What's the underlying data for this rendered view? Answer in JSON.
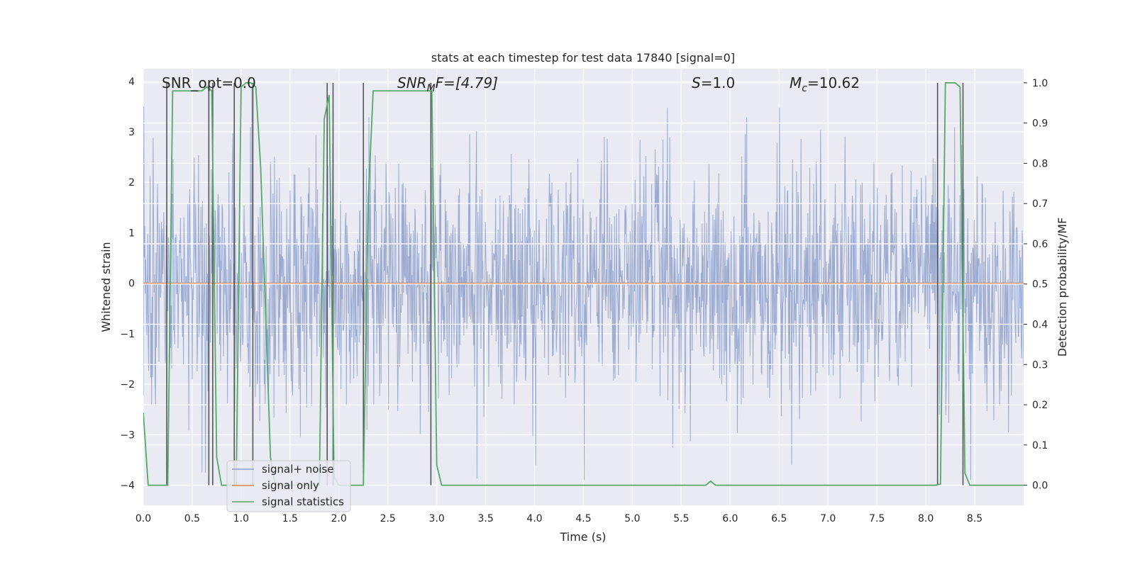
{
  "chart_data": {
    "type": "line",
    "title": "stats at each timestep for test data 17840 [signal=0]",
    "xlabel": "Time (s)",
    "ylabel_left": "Whitened strain",
    "ylabel_right": "Detection probability/MF",
    "xlim": [
      0.0,
      9.0
    ],
    "ylim_left": [
      -4.4,
      4.25
    ],
    "ylim_right": [
      -0.05,
      1.035
    ],
    "x_ticks": [
      0.0,
      0.5,
      1.0,
      1.5,
      2.0,
      2.5,
      3.0,
      3.5,
      4.0,
      4.5,
      5.0,
      5.5,
      6.0,
      6.5,
      7.0,
      7.5,
      8.0,
      8.5
    ],
    "x_tick_labels": [
      "0.0",
      "0.5",
      "1.0",
      "1.5",
      "2.0",
      "2.5",
      "3.0",
      "3.5",
      "4.0",
      "4.5",
      "5.0",
      "5.5",
      "6.0",
      "6.5",
      "7.0",
      "7.5",
      "8.0",
      "8.5"
    ],
    "y_left_ticks": [
      -4,
      -3,
      -2,
      -1,
      0,
      1,
      2,
      3,
      4
    ],
    "y_left_tick_labels": [
      "−4",
      "−3",
      "−2",
      "−1",
      "0",
      "1",
      "2",
      "3",
      "4"
    ],
    "y_right_ticks": [
      0.0,
      0.1,
      0.2,
      0.3,
      0.4,
      0.5,
      0.6,
      0.7,
      0.8,
      0.9,
      1.0
    ],
    "y_right_tick_labels": [
      "0.0",
      "0.1",
      "0.2",
      "0.3",
      "0.4",
      "0.5",
      "0.6",
      "0.7",
      "0.8",
      "0.9",
      "1.0"
    ],
    "annotations": {
      "snr_opt": "SNR_opt=0.0",
      "snr_mf_sym": "SNR",
      "snr_mf_sub": "M",
      "snr_mf_tail": "F=[4.79]",
      "s_sym": "S",
      "s_val": "=1.0",
      "mc_sym": "M",
      "mc_sub": "c",
      "mc_val": "=10.62"
    },
    "legend": {
      "location": "lower left",
      "entries": [
        "signal+ noise",
        "signal only",
        "signal statistics"
      ]
    },
    "noise": {
      "name": "signal+ noise",
      "color": "#8da0cb",
      "samples": 1800,
      "sigma": 1.0,
      "seed": 17840
    },
    "signal_only": {
      "name": "signal only",
      "color": "#dd8452",
      "x": [
        0.0,
        9.0
      ],
      "y": [
        0.0,
        0.0
      ]
    },
    "signal_statistics": {
      "name": "signal statistics",
      "color": "#55a868",
      "x": [
        0.0,
        0.05,
        0.1,
        0.15,
        0.2,
        0.25,
        0.3,
        0.35,
        0.4,
        0.45,
        0.5,
        0.55,
        0.6,
        0.65,
        0.7,
        0.75,
        0.8,
        0.85,
        0.9,
        0.95,
        1.0,
        1.05,
        1.1,
        1.15,
        1.2,
        1.25,
        1.3,
        1.35,
        1.4,
        1.45,
        1.5,
        1.55,
        1.6,
        1.65,
        1.7,
        1.75,
        1.8,
        1.85,
        1.9,
        1.95,
        2.0,
        2.05,
        2.1,
        2.15,
        2.2,
        2.25,
        2.3,
        2.35,
        2.4,
        2.45,
        2.5,
        2.55,
        2.6,
        2.65,
        2.7,
        2.75,
        2.8,
        2.85,
        2.9,
        2.95,
        3.0,
        3.05,
        3.1,
        5.7,
        5.75,
        5.8,
        5.85,
        5.9,
        8.05,
        8.1,
        8.15,
        8.2,
        8.25,
        8.3,
        8.35,
        8.4,
        8.45,
        8.5,
        8.55,
        8.6,
        8.65,
        8.7,
        8.75,
        8.8,
        8.85,
        8.9,
        8.95,
        9.0
      ],
      "y": [
        0.18,
        0.0,
        0.0,
        0.0,
        0.0,
        0.0,
        0.98,
        0.98,
        0.98,
        0.98,
        0.98,
        0.98,
        0.98,
        0.99,
        0.98,
        0.07,
        0.0,
        0.0,
        0.0,
        0.0,
        0.99,
        1.0,
        1.0,
        0.99,
        0.79,
        0.43,
        0.07,
        0.0,
        0.0,
        0.0,
        0.0,
        0.0,
        0.0,
        0.0,
        0.0,
        0.0,
        0.0,
        0.91,
        0.97,
        0.02,
        0.0,
        0.0,
        0.0,
        0.0,
        0.0,
        0.0,
        0.71,
        0.98,
        0.98,
        0.98,
        0.98,
        0.98,
        0.98,
        0.98,
        0.98,
        0.98,
        0.98,
        0.98,
        0.98,
        0.98,
        0.05,
        0.0,
        0.0,
        0.0,
        0.0,
        0.01,
        0.0,
        0.0,
        0.0,
        0.0,
        0.003,
        1.0,
        1.0,
        1.0,
        0.99,
        0.03,
        0.0,
        0.0,
        0.0,
        0.0,
        0.0,
        0.0,
        0.0,
        0.0,
        0.0,
        0.0,
        0.0,
        0.0
      ]
    },
    "detection_markers": {
      "color": "#555555",
      "x": [
        0.24,
        0.67,
        0.71,
        0.93,
        1.12,
        1.88,
        1.94,
        2.25,
        2.94,
        8.12,
        8.38
      ]
    }
  }
}
